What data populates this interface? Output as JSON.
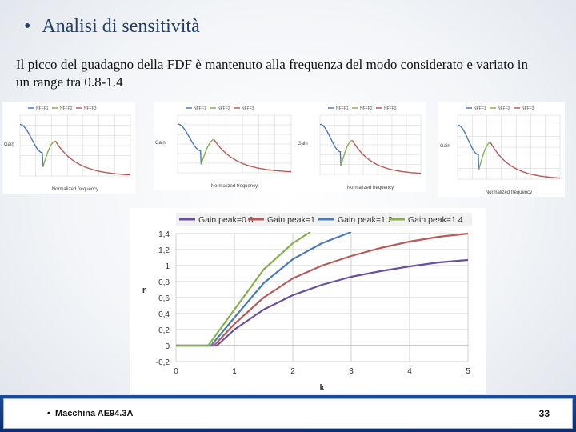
{
  "slide": {
    "title_bullet": "•",
    "title": "Analisi di sensitività",
    "body": "Il picco del guadagno della  FDF è mantenuto alla frequenza del modo considerato e variato in un range tra 0.8-1.4",
    "footer_bullet": "•",
    "footer_left": "Macchina AE94.3A",
    "page_number": "33"
  },
  "colors": {
    "blue": "#4a7ab8",
    "green": "#86b04a",
    "red": "#b85a58",
    "purple": "#6a4fa0",
    "grid": "#d0d0d0"
  },
  "chart_data": [
    {
      "type": "line",
      "title": "",
      "xlabel": "Normalized frequency",
      "ylabel": "Gain",
      "legend": [
        "NFFF1",
        "NFFF2",
        "NFFF3"
      ],
      "legend_placement": "top"
    },
    {
      "type": "line",
      "title": "",
      "xlabel": "Normalized frequency",
      "ylabel": "Gain",
      "legend": [
        "NFFF1",
        "NFFF2",
        "NFFF3"
      ],
      "legend_placement": "top"
    },
    {
      "type": "line",
      "title": "",
      "xlabel": "Normalized frequency",
      "ylabel": "Gain",
      "legend": [
        "NFFF1",
        "NFFF2",
        "NFFF3"
      ],
      "legend_placement": "top"
    },
    {
      "type": "line",
      "title": "",
      "xlabel": "Normalized frequency",
      "ylabel": "Gain",
      "legend": [
        "NFFF1",
        "NFFF2",
        "NFFF3"
      ],
      "legend_placement": "top"
    },
    {
      "type": "line",
      "title": "",
      "xlabel": "k",
      "ylabel": "r",
      "xlim": [
        0,
        5
      ],
      "ylim": [
        -0.2,
        1.4
      ],
      "x_ticks": [
        "0",
        "1",
        "2",
        "3",
        "4",
        "5"
      ],
      "y_ticks": [
        "-0,2",
        "0",
        "0,2",
        "0,4",
        "0,6",
        "0,8",
        "1",
        "1,2",
        "1,4"
      ],
      "grid": true,
      "legend_placement": "top",
      "series": [
        {
          "name": "Gain peak=0.8",
          "color": "#6a4fa0",
          "x": [
            0,
            0.55,
            0.7,
            1,
            1.5,
            2,
            2.5,
            3,
            3.5,
            4,
            4.5,
            5
          ],
          "y": [
            0,
            0,
            0,
            0.2,
            0.45,
            0.63,
            0.76,
            0.86,
            0.93,
            0.99,
            1.04,
            1.07
          ]
        },
        {
          "name": "Gain peak=1",
          "color": "#b85a58",
          "x": [
            0,
            0.5,
            0.65,
            1,
            1.5,
            2,
            2.5,
            3,
            3.5,
            4,
            4.5,
            5
          ],
          "y": [
            0,
            0,
            0,
            0.27,
            0.6,
            0.84,
            1.0,
            1.12,
            1.22,
            1.3,
            1.36,
            1.4
          ]
        },
        {
          "name": "Gain peak=1.2",
          "color": "#4a7ab8",
          "x": [
            0,
            0.45,
            0.6,
            1,
            1.5,
            2,
            2.5,
            3
          ],
          "y": [
            0,
            0,
            0,
            0.35,
            0.78,
            1.08,
            1.28,
            1.42
          ]
        },
        {
          "name": "Gain peak=1.4",
          "color": "#86b04a",
          "x": [
            0,
            0.4,
            0.55,
            1,
            1.5,
            2,
            2.3
          ],
          "y": [
            0,
            0,
            0,
            0.45,
            0.95,
            1.28,
            1.42
          ]
        }
      ]
    }
  ]
}
